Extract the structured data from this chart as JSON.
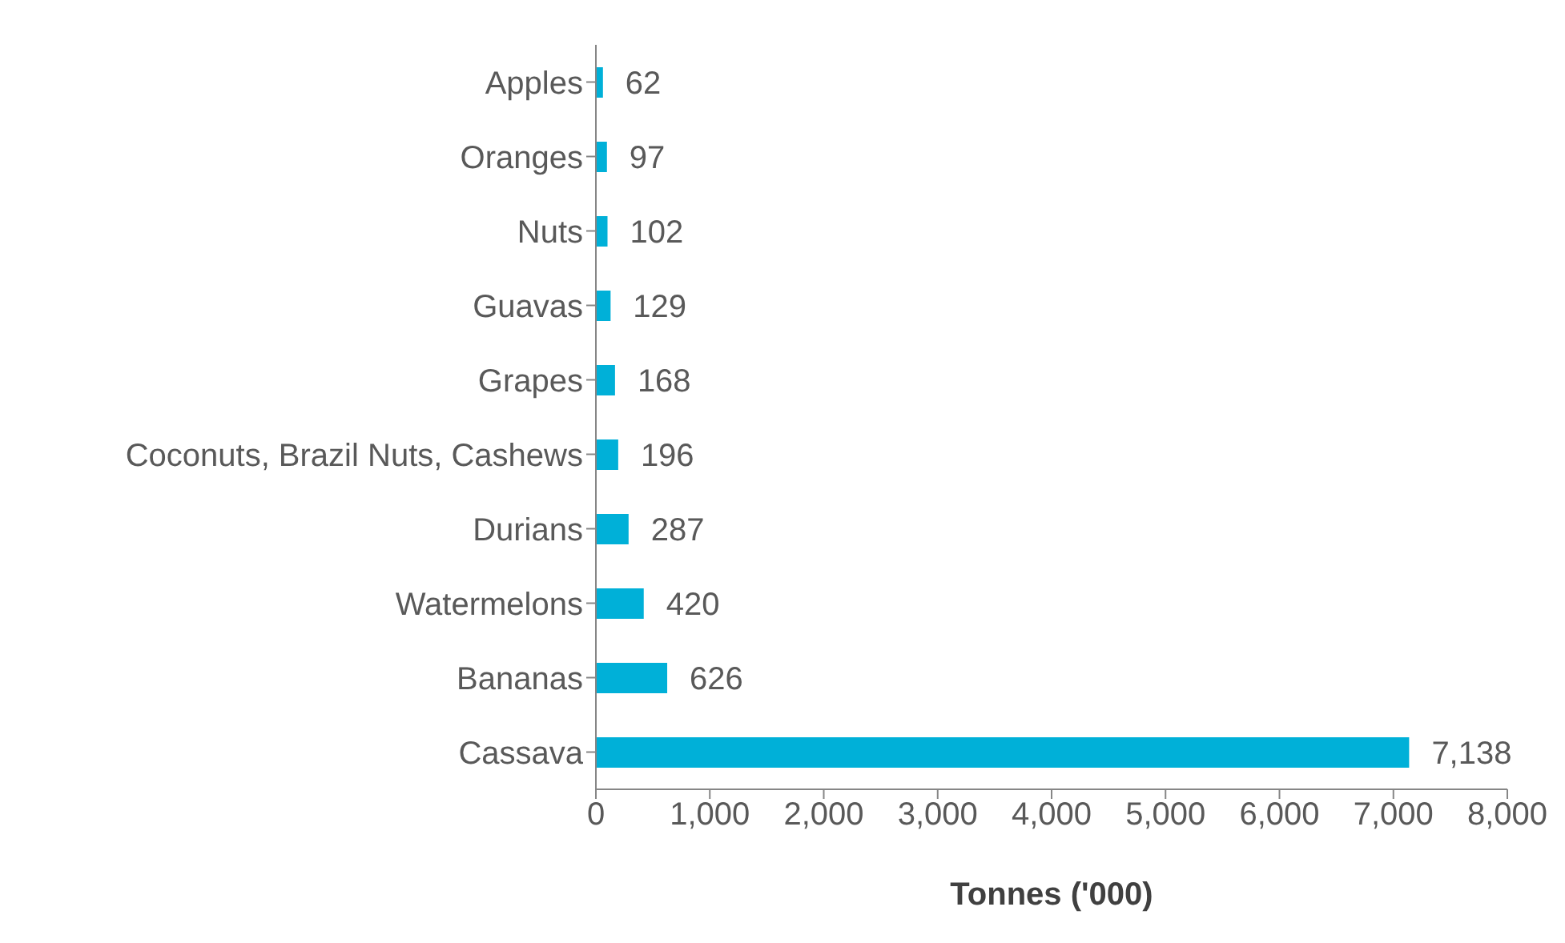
{
  "chart_data": {
    "type": "bar",
    "orientation": "horizontal",
    "xlabel": "Tonnes ('000)",
    "categories": [
      "Apples",
      "Oranges",
      "Nuts",
      "Guavas",
      "Grapes",
      "Coconuts, Brazil Nuts, Cashews",
      "Durians",
      "Watermelons",
      "Bananas",
      "Cassava"
    ],
    "values": [
      62,
      97,
      102,
      129,
      168,
      196,
      287,
      420,
      626,
      7138
    ],
    "value_labels": [
      "62",
      "97",
      "102",
      "129",
      "168",
      "196",
      "287",
      "420",
      "626",
      "7,138"
    ],
    "color": "#00b0d8",
    "xlim": [
      0,
      8000
    ],
    "xticks": [
      0,
      {
        "value": 1000,
        "label": "1,000"
      },
      {
        "value": 2000,
        "label": "2,000"
      },
      {
        "value": 3000,
        "label": "3,000"
      },
      {
        "value": 4000,
        "label": "4,000"
      },
      {
        "value": 5000,
        "label": "5,000"
      },
      {
        "value": 6000,
        "label": "6,000"
      },
      {
        "value": 7000,
        "label": "7,000"
      },
      {
        "value": 8000,
        "label": "8,000"
      }
    ]
  }
}
